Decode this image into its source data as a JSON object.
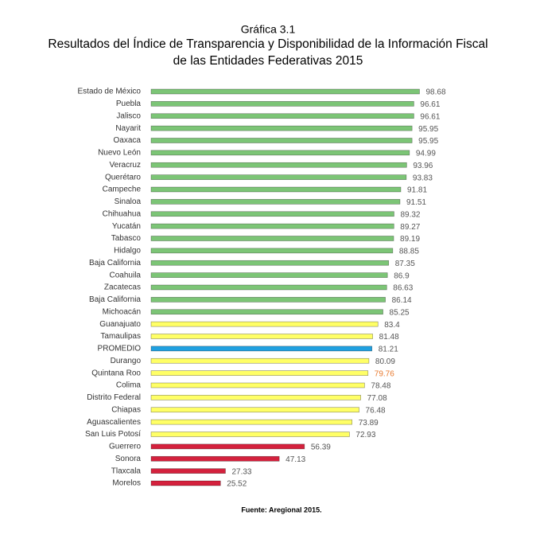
{
  "chart_data": {
    "type": "bar",
    "orientation": "horizontal",
    "supertitle": "Gráfica 3.1",
    "title": [
      "Resultados del Índice de Transparencia y Disponibilidad de la Información Fiscal",
      "de las Entidades Federativas 2015"
    ],
    "source": "Fuente: Aregional 2015.",
    "categories": [
      "Estado de México",
      "Puebla",
      "Jalisco",
      "Nayarit",
      "Oaxaca",
      "Nuevo León",
      "Veracruz",
      "Querétaro",
      "Campeche",
      "Sinaloa",
      "Chihuahua",
      "Yucatán",
      "Tabasco",
      "Hidalgo",
      "Baja California",
      "Coahuila",
      "Zacatecas",
      "Baja California",
      "Michoacán",
      "Guanajuato",
      "Tamaulipas",
      "PROMEDIO",
      "Durango",
      "Quintana Roo",
      "Colima",
      "Distrito Federal",
      "Chiapas",
      "Aguascalientes",
      "San Luis Potosí",
      "Guerrero",
      "Sonora",
      "Tlaxcala",
      "Morelos"
    ],
    "values": [
      98.68,
      96.61,
      96.61,
      95.95,
      95.95,
      94.99,
      93.96,
      93.83,
      91.81,
      91.51,
      89.32,
      89.27,
      89.19,
      88.85,
      87.35,
      86.9,
      86.63,
      86.14,
      85.25,
      83.4,
      81.48,
      81.21,
      80.09,
      79.76,
      78.48,
      77.08,
      76.48,
      73.89,
      72.93,
      56.39,
      47.13,
      27.33,
      25.52
    ],
    "colors": [
      "#7cc576",
      "#7cc576",
      "#7cc576",
      "#7cc576",
      "#7cc576",
      "#7cc576",
      "#7cc576",
      "#7cc576",
      "#7cc576",
      "#7cc576",
      "#7cc576",
      "#7cc576",
      "#7cc576",
      "#7cc576",
      "#7cc576",
      "#7cc576",
      "#7cc576",
      "#7cc576",
      "#7cc576",
      "#ffff66",
      "#ffff66",
      "#1fa0e0",
      "#ffff66",
      "#ffff66",
      "#ffff66",
      "#ffff66",
      "#ffff66",
      "#ffff66",
      "#ffff66",
      "#d4213d",
      "#d4213d",
      "#d4213d",
      "#d4213d"
    ],
    "label_colors": [
      "#555",
      "#555",
      "#555",
      "#555",
      "#555",
      "#555",
      "#555",
      "#555",
      "#555",
      "#555",
      "#555",
      "#555",
      "#555",
      "#555",
      "#555",
      "#555",
      "#555",
      "#555",
      "#555",
      "#555",
      "#555",
      "#555",
      "#555",
      "#e8792d",
      "#555",
      "#555",
      "#555",
      "#555",
      "#555",
      "#555",
      "#555",
      "#555",
      "#555"
    ],
    "xlim": [
      0,
      100
    ]
  }
}
